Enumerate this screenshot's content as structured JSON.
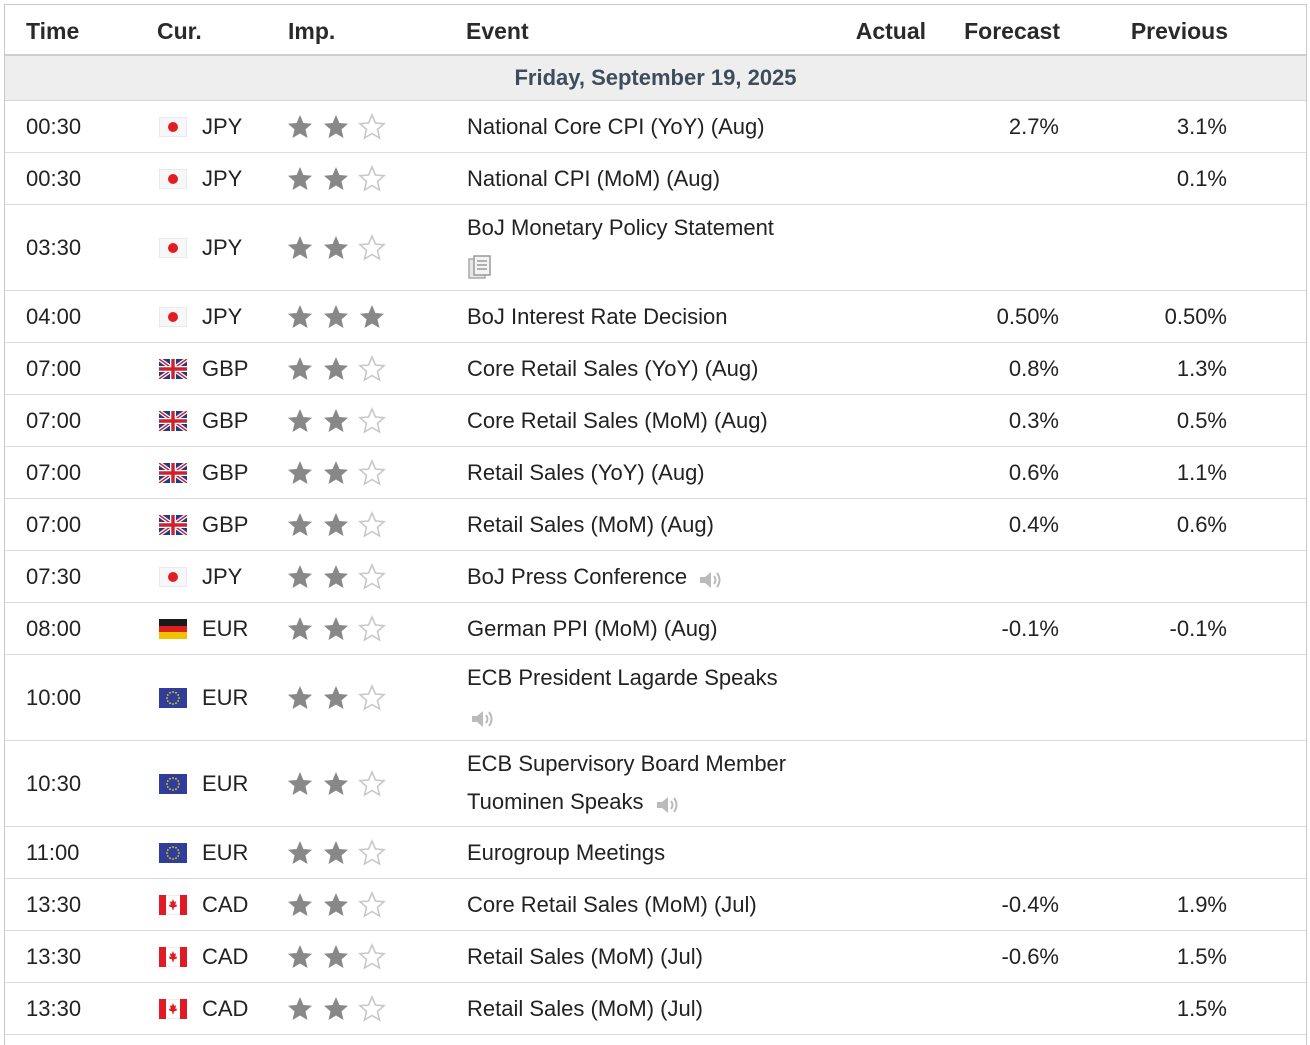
{
  "header": {
    "time": "Time",
    "cur": "Cur.",
    "imp": "Imp.",
    "event": "Event",
    "actual": "Actual",
    "forecast": "Forecast",
    "previous": "Previous"
  },
  "date_label": "Friday, September 19, 2025",
  "colors": {
    "star_filled": "#888888",
    "star_empty": "#c8c8c8",
    "date_bg": "#eeeeee",
    "date_text": "#3d4d5c"
  },
  "rows": [
    {
      "time": "00:30",
      "flag": "jp-flag",
      "currency": "JPY",
      "importance": 2,
      "event": "National Core CPI (YoY) (Aug)",
      "icon": "",
      "actual": "",
      "forecast": "2.7%",
      "previous": "3.1%",
      "tall": false
    },
    {
      "time": "00:30",
      "flag": "jp-flag",
      "currency": "JPY",
      "importance": 2,
      "event": "National CPI (MoM) (Aug)",
      "icon": "",
      "actual": "",
      "forecast": "",
      "previous": "0.1%",
      "tall": false
    },
    {
      "time": "03:30",
      "flag": "jp-flag",
      "currency": "JPY",
      "importance": 2,
      "event": "BoJ Monetary Policy Statement",
      "icon": "document-icon",
      "actual": "",
      "forecast": "",
      "previous": "",
      "tall": true
    },
    {
      "time": "04:00",
      "flag": "jp-flag",
      "currency": "JPY",
      "importance": 3,
      "event": "BoJ Interest Rate Decision",
      "icon": "",
      "actual": "",
      "forecast": "0.50%",
      "previous": "0.50%",
      "tall": false
    },
    {
      "time": "07:00",
      "flag": "uk-flag",
      "currency": "GBP",
      "importance": 2,
      "event": "Core Retail Sales (YoY) (Aug)",
      "icon": "",
      "actual": "",
      "forecast": "0.8%",
      "previous": "1.3%",
      "tall": false
    },
    {
      "time": "07:00",
      "flag": "uk-flag",
      "currency": "GBP",
      "importance": 2,
      "event": "Core Retail Sales (MoM) (Aug)",
      "icon": "",
      "actual": "",
      "forecast": "0.3%",
      "previous": "0.5%",
      "tall": false
    },
    {
      "time": "07:00",
      "flag": "uk-flag",
      "currency": "GBP",
      "importance": 2,
      "event": "Retail Sales (YoY) (Aug)",
      "icon": "",
      "actual": "",
      "forecast": "0.6%",
      "previous": "1.1%",
      "tall": false
    },
    {
      "time": "07:00",
      "flag": "uk-flag",
      "currency": "GBP",
      "importance": 2,
      "event": "Retail Sales (MoM) (Aug)",
      "icon": "",
      "actual": "",
      "forecast": "0.4%",
      "previous": "0.6%",
      "tall": false
    },
    {
      "time": "07:30",
      "flag": "jp-flag",
      "currency": "JPY",
      "importance": 2,
      "event": "BoJ Press Conference",
      "icon": "speaker-icon",
      "actual": "",
      "forecast": "",
      "previous": "",
      "tall": false
    },
    {
      "time": "08:00",
      "flag": "de-flag",
      "currency": "EUR",
      "importance": 2,
      "event": "German PPI (MoM) (Aug)",
      "icon": "",
      "actual": "",
      "forecast": "-0.1%",
      "previous": "-0.1%",
      "tall": false
    },
    {
      "time": "10:00",
      "flag": "eu-flag",
      "currency": "EUR",
      "importance": 2,
      "event": "ECB President Lagarde Speaks",
      "icon": "speaker-icon-below",
      "actual": "",
      "forecast": "",
      "previous": "",
      "tall": true
    },
    {
      "time": "10:30",
      "flag": "eu-flag",
      "currency": "EUR",
      "importance": 2,
      "event": "ECB Supervisory Board Member Tuominen Speaks",
      "icon": "speaker-icon",
      "actual": "",
      "forecast": "",
      "previous": "",
      "tall": true
    },
    {
      "time": "11:00",
      "flag": "eu-flag",
      "currency": "EUR",
      "importance": 2,
      "event": "Eurogroup Meetings",
      "icon": "",
      "actual": "",
      "forecast": "",
      "previous": "",
      "tall": false
    },
    {
      "time": "13:30",
      "flag": "ca-flag",
      "currency": "CAD",
      "importance": 2,
      "event": "Core Retail Sales (MoM) (Jul)",
      "icon": "",
      "actual": "",
      "forecast": "-0.4%",
      "previous": "1.9%",
      "tall": false
    },
    {
      "time": "13:30",
      "flag": "ca-flag",
      "currency": "CAD",
      "importance": 2,
      "event": "Retail Sales (MoM) (Jul)",
      "icon": "",
      "actual": "",
      "forecast": "-0.6%",
      "previous": "1.5%",
      "tall": false
    },
    {
      "time": "13:30",
      "flag": "ca-flag",
      "currency": "CAD",
      "importance": 2,
      "event": "Retail Sales (MoM) (Jul)",
      "icon": "",
      "actual": "",
      "forecast": "",
      "previous": "1.5%",
      "tall": false
    }
  ]
}
